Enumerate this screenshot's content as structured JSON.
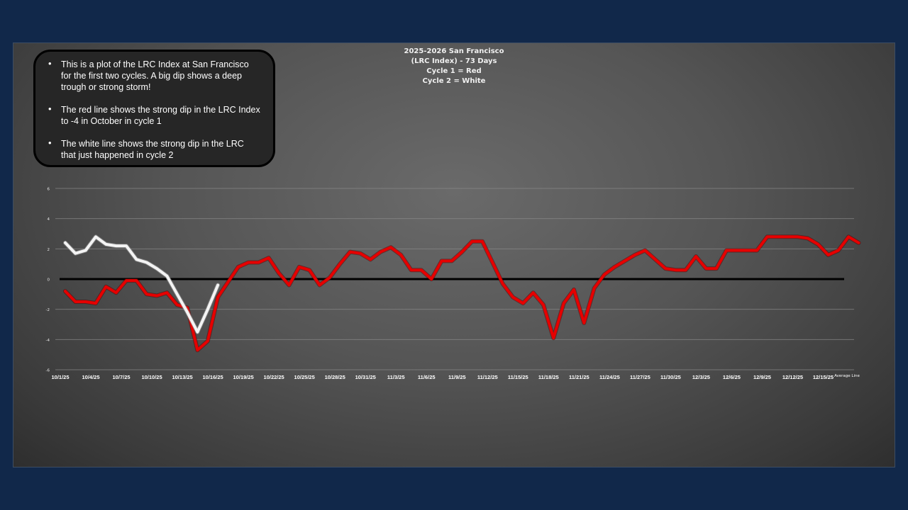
{
  "notes": [
    "This is a plot of the LRC Index at San Francisco for the first two cycles.  A big dip shows a deep trough or strong storm!",
    "The red line shows the strong dip in the LRC Index to -4 in October in cycle 1",
    "The white line shows the strong dip in the LRC that just happened in cycle 2"
  ],
  "chart_data": {
    "type": "line",
    "title_lines": [
      "2025-2026 San Francisco",
      "(LRC Index) - 73 Days",
      "Cycle 1 = Red",
      "Cycle 2 = White"
    ],
    "ylim": [
      -6,
      6
    ],
    "yticks": [
      6,
      4,
      2,
      0,
      -2,
      -4,
      -6
    ],
    "xtick_labels": [
      "10/1/25",
      "10/4/25",
      "10/7/25",
      "10/10/25",
      "10/13/25",
      "10/16/25",
      "10/19/25",
      "10/22/25",
      "10/25/25",
      "10/28/25",
      "10/31/25",
      "11/3/25",
      "11/6/25",
      "11/9/25",
      "11/12/25",
      "11/15/25",
      "11/18/25",
      "11/21/25",
      "11/24/25",
      "11/27/25",
      "11/30/25",
      "12/3/25",
      "12/6/25",
      "12/9/25",
      "12/12/25",
      "12/15/25"
    ],
    "xtick_step_days": 3,
    "average_line": {
      "label": "Average Line",
      "value": 0,
      "color": "#000000"
    },
    "series": [
      {
        "color": "#e60000",
        "values": [
          -0.8,
          -1.5,
          -1.5,
          -1.6,
          -0.5,
          -0.9,
          -0.1,
          -0.1,
          -1.0,
          -1.1,
          -0.9,
          -1.7,
          -1.9,
          -4.7,
          -4.1,
          -1.2,
          -0.2,
          0.8,
          1.1,
          1.1,
          1.4,
          0.4,
          -0.4,
          0.8,
          0.6,
          -0.4,
          0.1,
          1.0,
          1.8,
          1.7,
          1.3,
          1.8,
          2.1,
          1.6,
          0.6,
          0.6,
          0.0,
          1.2,
          1.2,
          1.8,
          2.5,
          2.5,
          1.1,
          -0.3,
          -1.2,
          -1.6,
          -0.9,
          -1.7,
          -3.9,
          -1.6,
          -0.7,
          -2.9,
          -0.6,
          0.3,
          0.8,
          1.2,
          1.6,
          1.9,
          1.3,
          0.7,
          0.6,
          0.6,
          1.5,
          0.7,
          0.7,
          1.9,
          1.9,
          1.9,
          1.9,
          2.8,
          2.8,
          2.8,
          2.8,
          2.7,
          2.3,
          1.6,
          1.9,
          2.8,
          2.4
        ]
      },
      {
        "color": "#f4f4f4",
        "values": [
          2.4,
          1.7,
          1.9,
          2.8,
          2.3,
          2.2,
          2.2,
          1.3,
          1.1,
          0.7,
          0.2,
          -1.0,
          -2.2,
          -3.5,
          -2.0,
          -0.4
        ]
      }
    ]
  }
}
